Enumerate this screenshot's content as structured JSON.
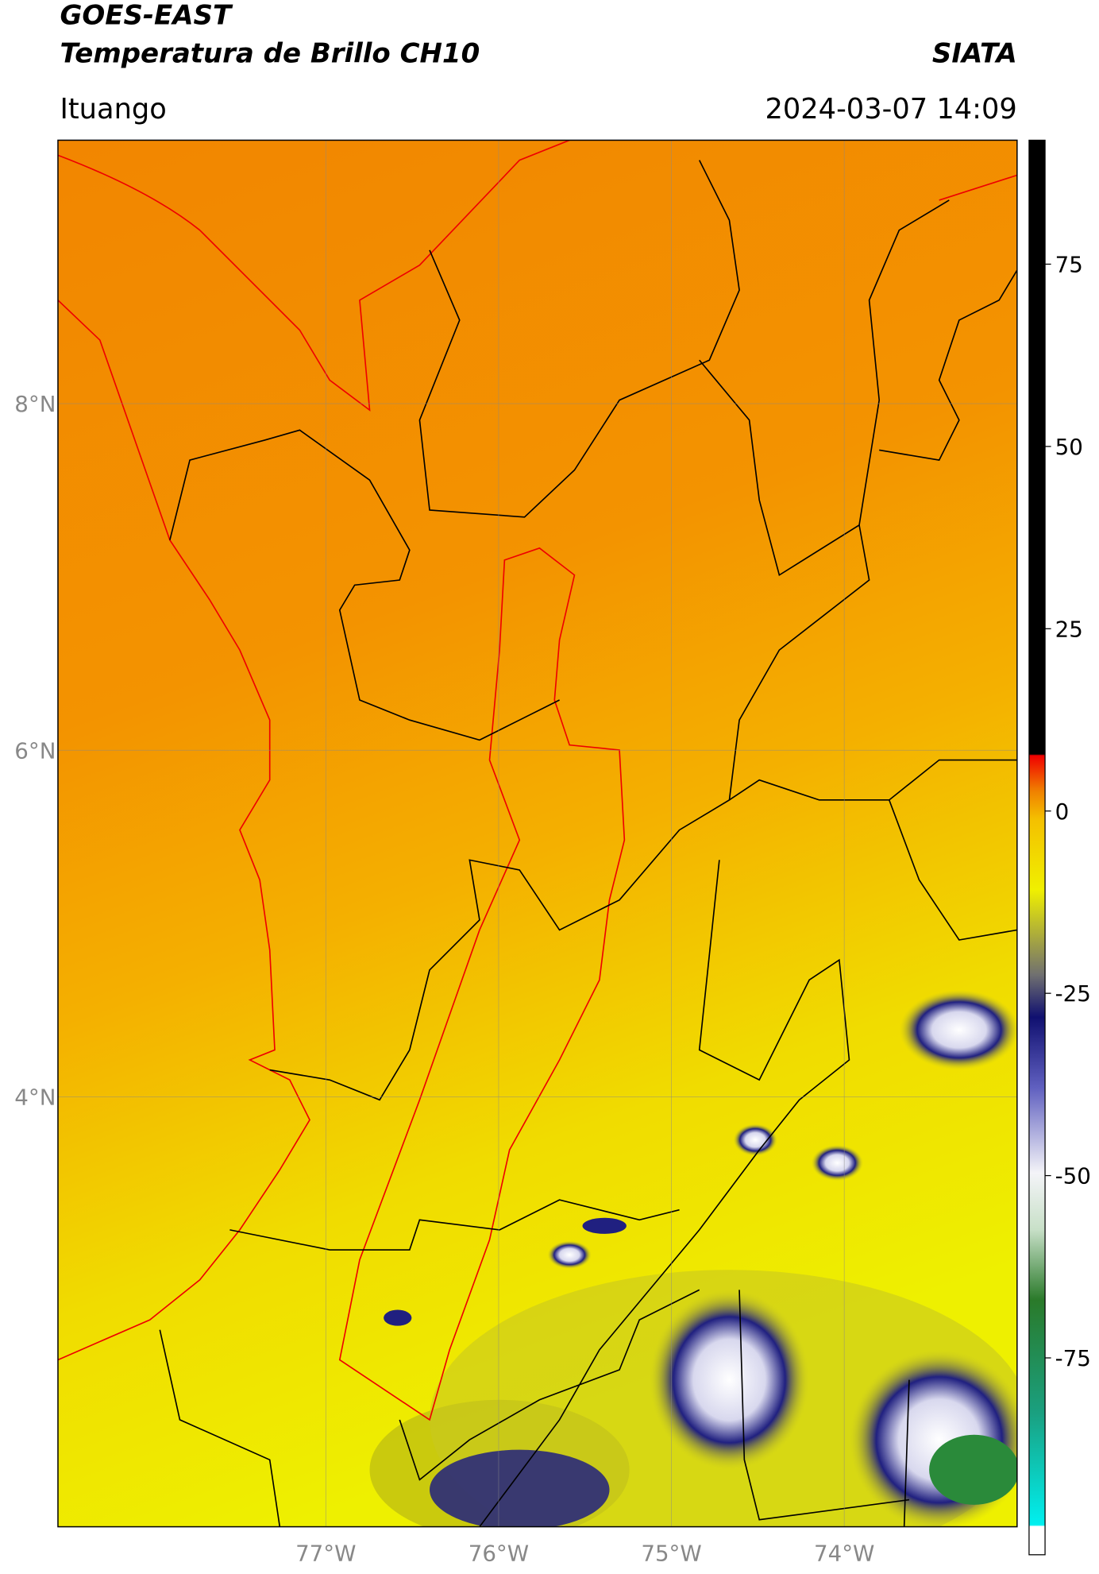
{
  "header": {
    "title": "GOES-EAST",
    "subtitle": "Temperatura de Brillo CH10",
    "organization": "SIATA",
    "location": "Ituango",
    "datetime": "2024-03-07 14:09"
  },
  "map": {
    "xlim": [
      -78.55,
      -73.0
    ],
    "ylim": [
      1.52,
      9.52
    ],
    "xticks": [
      {
        "value": -77,
        "label": "77°W"
      },
      {
        "value": -76,
        "label": "76°W"
      },
      {
        "value": -75,
        "label": "75°W"
      },
      {
        "value": -74,
        "label": "74°W"
      }
    ],
    "yticks": [
      {
        "value": 8,
        "label": "8°N"
      },
      {
        "value": 6,
        "label": "6°N"
      },
      {
        "value": 4,
        "label": "4°N"
      }
    ]
  },
  "colorbar": {
    "clim": [
      -102,
      92
    ],
    "ticks": [
      75,
      50,
      25,
      0,
      -25,
      -50,
      -75
    ]
  }
}
